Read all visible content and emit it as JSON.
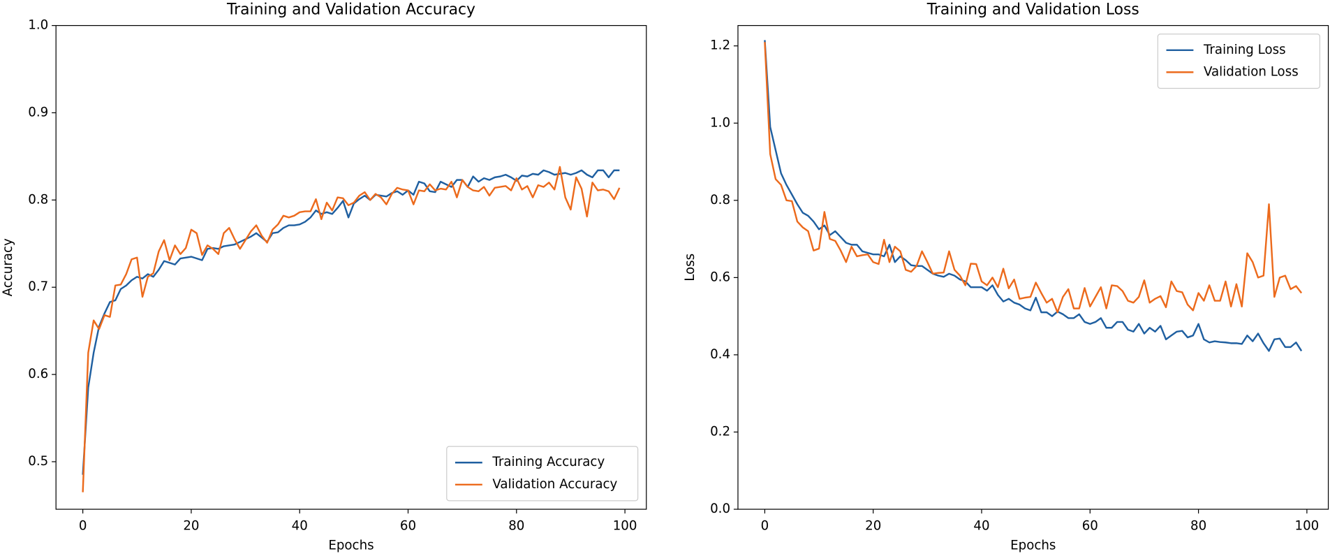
{
  "chart_data": [
    {
      "type": "line",
      "title": "Training and Validation Accuracy",
      "x_label": "Epochs",
      "y_label": "Accuracy",
      "x": [
        0,
        1,
        2,
        3,
        4,
        5,
        6,
        7,
        8,
        9,
        10,
        11,
        12,
        13,
        14,
        15,
        16,
        17,
        18,
        19,
        20,
        21,
        22,
        23,
        24,
        25,
        26,
        27,
        28,
        29,
        30,
        31,
        32,
        33,
        34,
        35,
        36,
        37,
        38,
        39,
        40,
        41,
        42,
        43,
        44,
        45,
        46,
        47,
        48,
        49,
        50,
        51,
        52,
        53,
        54,
        55,
        56,
        57,
        58,
        59,
        60,
        61,
        62,
        63,
        64,
        65,
        66,
        67,
        68,
        69,
        70,
        71,
        72,
        73,
        74,
        75,
        76,
        77,
        78,
        79,
        80,
        81,
        82,
        83,
        84,
        85,
        86,
        87,
        88,
        89,
        90,
        91,
        92,
        93,
        94,
        95,
        96,
        97,
        98,
        99
      ],
      "series": [
        {
          "name": "Training Accuracy",
          "color": "#1f5fa0",
          "values": [
            0.485,
            0.585,
            0.625,
            0.655,
            0.67,
            0.683,
            0.685,
            0.698,
            0.702,
            0.708,
            0.712,
            0.71,
            0.715,
            0.712,
            0.72,
            0.73,
            0.728,
            0.726,
            0.733,
            0.734,
            0.735,
            0.733,
            0.731,
            0.744,
            0.745,
            0.744,
            0.747,
            0.748,
            0.749,
            0.752,
            0.755,
            0.758,
            0.762,
            0.757,
            0.752,
            0.762,
            0.763,
            0.768,
            0.771,
            0.771,
            0.772,
            0.775,
            0.78,
            0.788,
            0.784,
            0.786,
            0.784,
            0.791,
            0.799,
            0.78,
            0.796,
            0.801,
            0.805,
            0.8,
            0.806,
            0.805,
            0.804,
            0.808,
            0.81,
            0.806,
            0.811,
            0.806,
            0.821,
            0.819,
            0.81,
            0.809,
            0.821,
            0.818,
            0.815,
            0.823,
            0.823,
            0.815,
            0.827,
            0.821,
            0.825,
            0.823,
            0.826,
            0.827,
            0.829,
            0.826,
            0.822,
            0.828,
            0.827,
            0.83,
            0.829,
            0.834,
            0.832,
            0.829,
            0.83,
            0.831,
            0.829,
            0.831,
            0.834,
            0.829,
            0.826,
            0.834,
            0.834,
            0.826,
            0.834,
            0.834
          ]
        },
        {
          "name": "Validation Accuracy",
          "color": "#ec6a1c",
          "values": [
            0.465,
            0.625,
            0.662,
            0.652,
            0.668,
            0.666,
            0.702,
            0.703,
            0.715,
            0.732,
            0.734,
            0.689,
            0.712,
            0.716,
            0.741,
            0.754,
            0.731,
            0.748,
            0.738,
            0.745,
            0.766,
            0.762,
            0.737,
            0.748,
            0.744,
            0.738,
            0.762,
            0.768,
            0.755,
            0.744,
            0.754,
            0.764,
            0.771,
            0.759,
            0.751,
            0.766,
            0.772,
            0.782,
            0.78,
            0.782,
            0.786,
            0.787,
            0.787,
            0.801,
            0.778,
            0.797,
            0.788,
            0.803,
            0.802,
            0.794,
            0.797,
            0.805,
            0.809,
            0.8,
            0.807,
            0.803,
            0.795,
            0.807,
            0.814,
            0.812,
            0.811,
            0.795,
            0.811,
            0.81,
            0.818,
            0.811,
            0.813,
            0.812,
            0.821,
            0.803,
            0.823,
            0.815,
            0.811,
            0.81,
            0.815,
            0.805,
            0.814,
            0.815,
            0.816,
            0.811,
            0.825,
            0.812,
            0.816,
            0.803,
            0.817,
            0.815,
            0.82,
            0.812,
            0.838,
            0.803,
            0.789,
            0.826,
            0.813,
            0.781,
            0.82,
            0.811,
            0.812,
            0.81,
            0.801,
            0.814
          ]
        }
      ],
      "xlim": [
        -4.95,
        103.95
      ],
      "ylim": [
        0.4455,
        1.0
      ],
      "xticks": [
        0,
        20,
        40,
        60,
        80,
        100
      ],
      "yticks": [
        0.5,
        0.6,
        0.7,
        0.8,
        0.9,
        {
          "value": 1.0,
          "label": "1.0"
        }
      ],
      "legend": "lower right"
    },
    {
      "type": "line",
      "title": "Training and Validation Loss",
      "x_label": "Epochs",
      "y_label": "Loss",
      "x": [
        0,
        1,
        2,
        3,
        4,
        5,
        6,
        7,
        8,
        9,
        10,
        11,
        12,
        13,
        14,
        15,
        16,
        17,
        18,
        19,
        20,
        21,
        22,
        23,
        24,
        25,
        26,
        27,
        28,
        29,
        30,
        31,
        32,
        33,
        34,
        35,
        36,
        37,
        38,
        39,
        40,
        41,
        42,
        43,
        44,
        45,
        46,
        47,
        48,
        49,
        50,
        51,
        52,
        53,
        54,
        55,
        56,
        57,
        58,
        59,
        60,
        61,
        62,
        63,
        64,
        65,
        66,
        67,
        68,
        69,
        70,
        71,
        72,
        73,
        74,
        75,
        76,
        77,
        78,
        79,
        80,
        81,
        82,
        83,
        84,
        85,
        86,
        87,
        88,
        89,
        90,
        91,
        92,
        93,
        94,
        95,
        96,
        97,
        98,
        99
      ],
      "series": [
        {
          "name": "Training Loss",
          "color": "#1f5fa0",
          "values": [
            1.215,
            0.99,
            0.93,
            0.87,
            0.84,
            0.815,
            0.79,
            0.768,
            0.76,
            0.745,
            0.725,
            0.735,
            0.71,
            0.72,
            0.705,
            0.69,
            0.685,
            0.685,
            0.668,
            0.664,
            0.66,
            0.66,
            0.655,
            0.685,
            0.64,
            0.655,
            0.645,
            0.632,
            0.63,
            0.63,
            0.62,
            0.61,
            0.605,
            0.602,
            0.61,
            0.605,
            0.595,
            0.59,
            0.575,
            0.575,
            0.575,
            0.566,
            0.58,
            0.555,
            0.538,
            0.545,
            0.535,
            0.53,
            0.52,
            0.515,
            0.548,
            0.51,
            0.51,
            0.5,
            0.512,
            0.505,
            0.495,
            0.495,
            0.505,
            0.485,
            0.48,
            0.485,
            0.495,
            0.47,
            0.47,
            0.485,
            0.485,
            0.465,
            0.46,
            0.48,
            0.455,
            0.47,
            0.46,
            0.475,
            0.44,
            0.45,
            0.46,
            0.462,
            0.445,
            0.45,
            0.48,
            0.44,
            0.432,
            0.435,
            0.433,
            0.432,
            0.43,
            0.43,
            0.428,
            0.45,
            0.435,
            0.455,
            0.43,
            0.41,
            0.44,
            0.442,
            0.42,
            0.42,
            0.432,
            0.41
          ]
        },
        {
          "name": "Validation Loss",
          "color": "#ec6a1c",
          "values": [
            1.21,
            0.92,
            0.855,
            0.84,
            0.8,
            0.798,
            0.745,
            0.73,
            0.72,
            0.67,
            0.675,
            0.77,
            0.7,
            0.695,
            0.67,
            0.64,
            0.68,
            0.655,
            0.658,
            0.66,
            0.64,
            0.635,
            0.698,
            0.64,
            0.68,
            0.668,
            0.62,
            0.615,
            0.63,
            0.668,
            0.64,
            0.61,
            0.612,
            0.613,
            0.668,
            0.62,
            0.605,
            0.58,
            0.636,
            0.635,
            0.59,
            0.58,
            0.6,
            0.575,
            0.623,
            0.572,
            0.595,
            0.545,
            0.548,
            0.55,
            0.587,
            0.56,
            0.535,
            0.545,
            0.51,
            0.55,
            0.57,
            0.52,
            0.52,
            0.573,
            0.525,
            0.55,
            0.575,
            0.52,
            0.58,
            0.578,
            0.565,
            0.54,
            0.535,
            0.55,
            0.593,
            0.535,
            0.545,
            0.552,
            0.523,
            0.59,
            0.565,
            0.562,
            0.53,
            0.515,
            0.56,
            0.54,
            0.58,
            0.54,
            0.54,
            0.59,
            0.525,
            0.583,
            0.525,
            0.663,
            0.64,
            0.6,
            0.605,
            0.79,
            0.55,
            0.6,
            0.605,
            0.57,
            0.578,
            0.56
          ]
        }
      ],
      "xlim": [
        -4.95,
        103.95
      ],
      "ylim": [
        0,
        1.2527
      ],
      "xticks": [
        0,
        20,
        40,
        60,
        80,
        100
      ],
      "yticks": [
        {
          "value": 0,
          "label": "0.0"
        },
        0.2,
        0.4,
        0.6,
        0.8,
        {
          "value": 1.0,
          "label": "1.0"
        },
        1.2
      ],
      "legend": "upper right"
    }
  ]
}
